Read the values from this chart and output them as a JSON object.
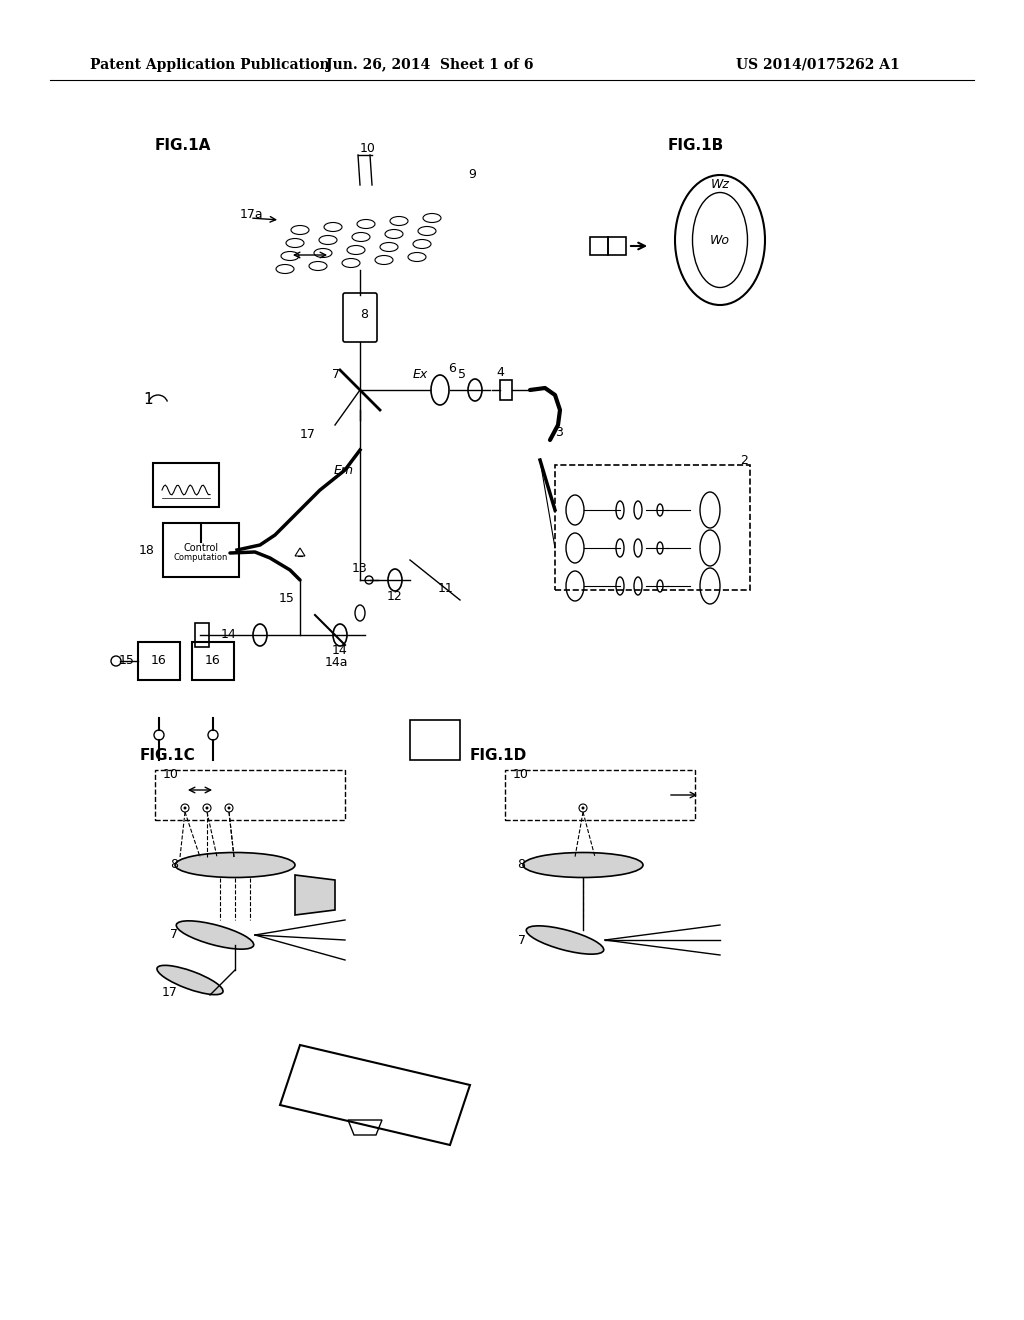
{
  "header_left": "Patent Application Publication",
  "header_center": "Jun. 26, 2014  Sheet 1 of 6",
  "header_right": "US 2014/0175262 A1",
  "fig1a_label": "FIG.1A",
  "fig1b_label": "FIG.1B",
  "fig1c_label": "FIG.1C",
  "fig1d_label": "FIG.1D",
  "bg_color": "#ffffff",
  "line_color": "#000000",
  "font_size_header": 10,
  "font_size_label": 11,
  "font_size_number": 9
}
